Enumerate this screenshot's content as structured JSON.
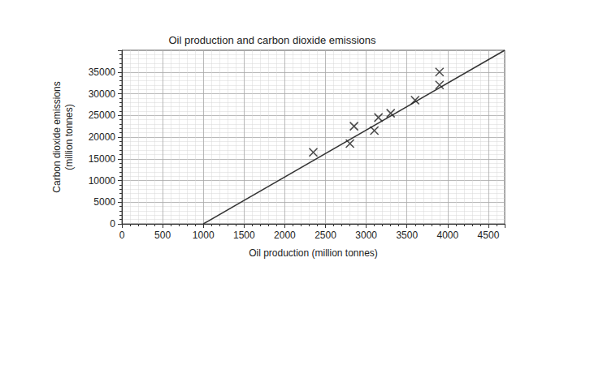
{
  "chart_data": {
    "type": "scatter",
    "title": "Oil production and carbon dioxide emissions",
    "x_label": "Oil production (million tonnes)",
    "y_label": "Carbon dioxide emissions\n(million tonnes)",
    "xlim": [
      0,
      4700
    ],
    "xticks": [
      0,
      500,
      1000,
      1500,
      2000,
      2500,
      3000,
      3500,
      4000,
      4500
    ],
    "ylim": [
      0,
      40000
    ],
    "yticks": [
      0,
      5000,
      10000,
      15000,
      20000,
      25000,
      30000,
      35000
    ],
    "grid": true,
    "series": [
      {
        "type": "scatter",
        "marker": "cross",
        "color": "#222222",
        "x": [
          2350,
          2800,
          2850,
          3100,
          3150,
          3300,
          3600,
          3900,
          3900
        ],
        "values": [
          16500,
          18500,
          22500,
          21500,
          24500,
          25500,
          28500,
          32000,
          35000
        ]
      },
      {
        "type": "line",
        "line_style": "solid",
        "color": "#333333",
        "x": [
          1000,
          4700
        ],
        "values": [
          0,
          40000
        ]
      }
    ]
  }
}
